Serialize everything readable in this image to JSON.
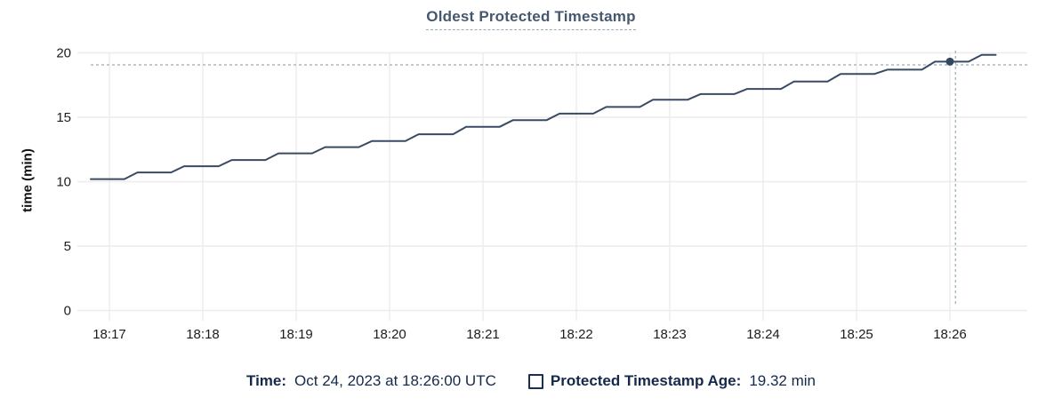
{
  "chart": {
    "title": "Oldest Protected Timestamp",
    "y_axis_label": "time (min)"
  },
  "legend": {
    "time_label": "Time:",
    "time_value": "Oct 24, 2023 at 18:26:00 UTC",
    "series_label": "Protected Timestamp Age:",
    "series_value": "19.32 min"
  },
  "colors": {
    "title": "#46586f",
    "title_underline": "#9aa9b6",
    "line": "#394b63",
    "dot": "#35475f",
    "crosshair": "#a9bac4",
    "grid": "#ececec",
    "tick_text": "#1c1c1c",
    "legend_text": "#15294a",
    "background": "#ffffff"
  },
  "chart_data": {
    "type": "line",
    "title": "Oldest Protected Timestamp",
    "xlabel": "",
    "ylabel": "time (min)",
    "x_unit": "minutes after 18:17:00 UTC",
    "x_tick_labels": [
      "18:17",
      "18:18",
      "18:19",
      "18:20",
      "18:21",
      "18:22",
      "18:23",
      "18:24",
      "18:25",
      "18:26"
    ],
    "x_tick_positions": [
      0,
      1,
      2,
      3,
      4,
      5,
      6,
      7,
      8,
      9
    ],
    "y_ticks": [
      0,
      5,
      10,
      15,
      20
    ],
    "ylim": [
      0,
      20
    ],
    "xlim": [
      -0.34,
      9.83
    ],
    "grid": true,
    "legend_position": "bottom",
    "series": [
      {
        "name": "Protected Timestamp Age",
        "unit": "min",
        "points": [
          [
            -0.2,
            10.2
          ],
          [
            0.16,
            10.2
          ],
          [
            0.3,
            10.72
          ],
          [
            0.66,
            10.72
          ],
          [
            0.8,
            11.2
          ],
          [
            1.17,
            11.2
          ],
          [
            1.31,
            11.68
          ],
          [
            1.67,
            11.68
          ],
          [
            1.81,
            12.2
          ],
          [
            2.17,
            12.2
          ],
          [
            2.31,
            12.68
          ],
          [
            2.67,
            12.68
          ],
          [
            2.81,
            13.15
          ],
          [
            3.17,
            13.15
          ],
          [
            3.31,
            13.68
          ],
          [
            3.68,
            13.68
          ],
          [
            3.82,
            14.26
          ],
          [
            4.18,
            14.26
          ],
          [
            4.32,
            14.77
          ],
          [
            4.68,
            14.77
          ],
          [
            4.82,
            15.28
          ],
          [
            5.18,
            15.28
          ],
          [
            5.32,
            15.8
          ],
          [
            5.68,
            15.8
          ],
          [
            5.82,
            16.36
          ],
          [
            6.19,
            16.36
          ],
          [
            6.33,
            16.8
          ],
          [
            6.69,
            16.8
          ],
          [
            6.83,
            17.2
          ],
          [
            7.19,
            17.2
          ],
          [
            7.33,
            17.77
          ],
          [
            7.69,
            17.77
          ],
          [
            7.83,
            18.36
          ],
          [
            8.19,
            18.36
          ],
          [
            8.33,
            18.7
          ],
          [
            8.7,
            18.7
          ],
          [
            8.84,
            19.32
          ],
          [
            9.2,
            19.32
          ],
          [
            9.34,
            19.85
          ],
          [
            9.49,
            19.85
          ]
        ]
      }
    ],
    "hover_point": {
      "x": 9.0,
      "y": 19.32,
      "time": "18:26:00 UTC",
      "value_label": "19.32 min"
    },
    "crosshair": {
      "x": 9.06,
      "y": 19.07
    }
  }
}
